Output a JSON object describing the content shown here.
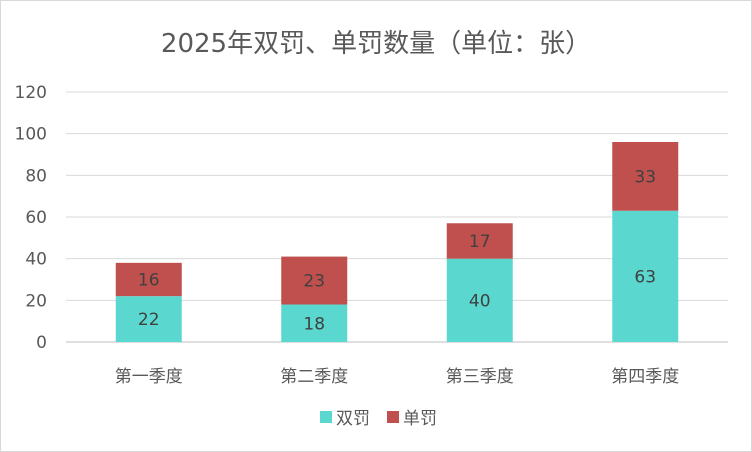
{
  "chart_data": {
    "type": "bar",
    "stacked": true,
    "title": "2025年双罚、单罚数量（单位：张）",
    "categories": [
      "第一季度",
      "第二季度",
      "第三季度",
      "第四季度"
    ],
    "series": [
      {
        "name": "双罚",
        "values": [
          22,
          18,
          40,
          63
        ],
        "color": "#5ad8cf"
      },
      {
        "name": "单罚",
        "values": [
          16,
          23,
          17,
          33
        ],
        "color": "#c0504d"
      }
    ],
    "ylim": [
      0,
      120
    ],
    "yticks": [
      0,
      20,
      40,
      60,
      80,
      100,
      120
    ],
    "grid": true,
    "legend_position": "bottom"
  }
}
